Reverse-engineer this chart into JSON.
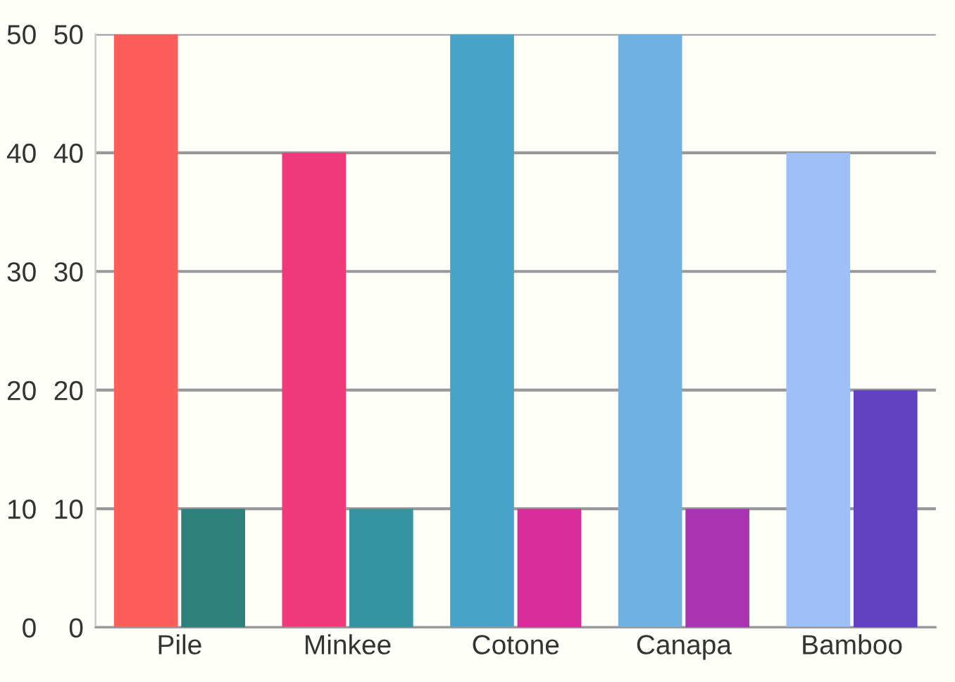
{
  "chart_data": {
    "type": "bar",
    "categories": [
      "Pile",
      "Minkee",
      "Cotone",
      "Canapa",
      "Bamboo"
    ],
    "series": [
      {
        "colors": [
          "#fe5e59",
          "#f0397a",
          "#4aa3c8",
          "#6fb1e1",
          "#a0bff8"
        ],
        "values": [
          50,
          40,
          50,
          50,
          40
        ]
      },
      {
        "colors": [
          "#2e807c",
          "#3594a0",
          "#d82c9c",
          "#aa33b3",
          "#6242c3"
        ],
        "values": [
          10,
          10,
          10,
          10,
          20
        ],
        "axis": "y2"
      }
    ],
    "ylim": [
      0,
      50
    ],
    "yticks": [
      0,
      10,
      20,
      30,
      40,
      50
    ],
    "y2lim": [
      0,
      50
    ],
    "y2ticks": [
      0,
      10,
      20,
      30,
      40,
      50
    ],
    "grid": "y",
    "legend": false
  }
}
